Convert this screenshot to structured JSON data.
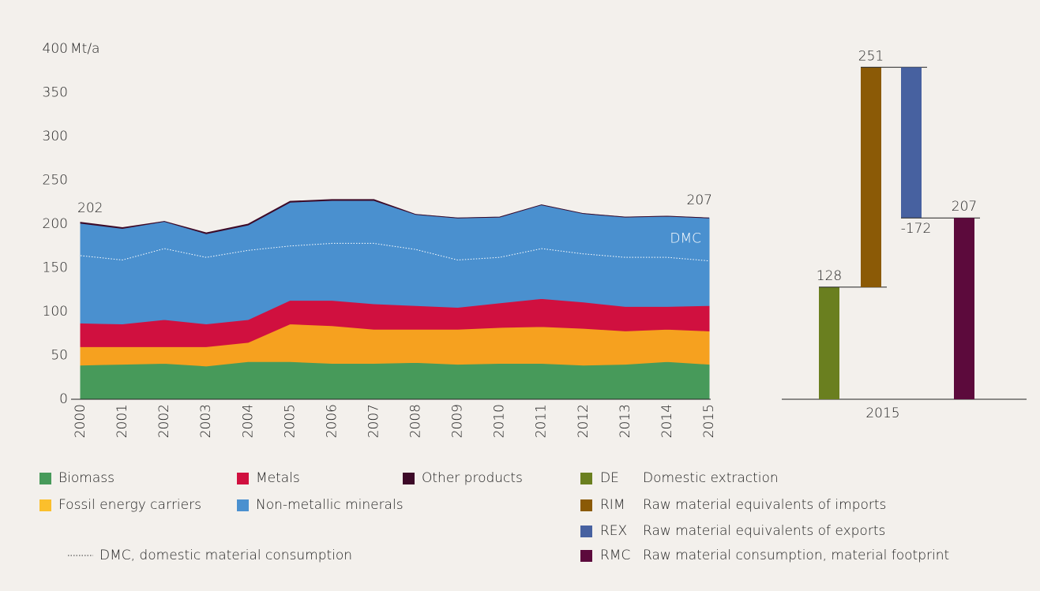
{
  "chart_data": [
    {
      "type": "stacked-area",
      "y_unit": "Mt/a",
      "categories": [
        "2000",
        "2001",
        "2002",
        "2003",
        "2004",
        "2005",
        "2006",
        "2007",
        "2008",
        "2009",
        "2010",
        "2011",
        "2012",
        "2013",
        "2014",
        "2015"
      ],
      "series": [
        {
          "name": "Biomass",
          "color": "#479a5a",
          "values": [
            39,
            40,
            41,
            38,
            43,
            43,
            41,
            41,
            42,
            40,
            41,
            41,
            39,
            40,
            43,
            40
          ]
        },
        {
          "name": "Fossil energy carriers",
          "color": "#f6a11f",
          "legend_color": "#fbbf2c",
          "values": [
            21,
            20,
            19,
            22,
            22,
            43,
            43,
            39,
            38,
            40,
            41,
            42,
            42,
            38,
            37,
            38
          ]
        },
        {
          "name": "Metals",
          "color": "#d0103f",
          "values": [
            27,
            26,
            31,
            26,
            26,
            27,
            29,
            29,
            27,
            25,
            28,
            32,
            30,
            28,
            26,
            29
          ]
        },
        {
          "name": "Non-metallic minerals",
          "color": "#4a90cf",
          "values": [
            114,
            109,
            112,
            103,
            108,
            112,
            114,
            118,
            104,
            102,
            98,
            107,
            101,
            102,
            103,
            100
          ]
        },
        {
          "name": "Other products",
          "color": "#3d0a28",
          "values": [
            1,
            1,
            0,
            1,
            1,
            1,
            1,
            1,
            0,
            0,
            0,
            0,
            0,
            0,
            0,
            0
          ]
        }
      ],
      "line": {
        "name": "DMC, domestic material consumption",
        "label": "DMC",
        "color": "#ffffff",
        "values": [
          164,
          159,
          172,
          162,
          170,
          175,
          178,
          178,
          171,
          159,
          162,
          172,
          166,
          162,
          162,
          158
        ]
      },
      "annotations": [
        "202",
        "207"
      ],
      "ylim": [
        0,
        400
      ],
      "yticks": [
        0,
        50,
        100,
        150,
        200,
        250,
        300,
        350,
        400
      ],
      "grid": false
    },
    {
      "type": "waterfall",
      "categories": [
        "2015"
      ],
      "items": [
        {
          "code": "DE",
          "name": "Domestic extraction",
          "value": 128,
          "color": "#6a7f1f"
        },
        {
          "code": "RIM",
          "name": "Raw material equivalents of imports",
          "value": 251,
          "color": "#8b5a06"
        },
        {
          "code": "REX",
          "name": "Raw material  equivalents of exports",
          "value": -172,
          "color": "#4761a0"
        },
        {
          "code": "RMC",
          "name": "Raw material consumption, material footprint",
          "value": 207,
          "color": "#5c0a3c",
          "total": true
        }
      ],
      "ylim": [
        0,
        400
      ]
    }
  ]
}
